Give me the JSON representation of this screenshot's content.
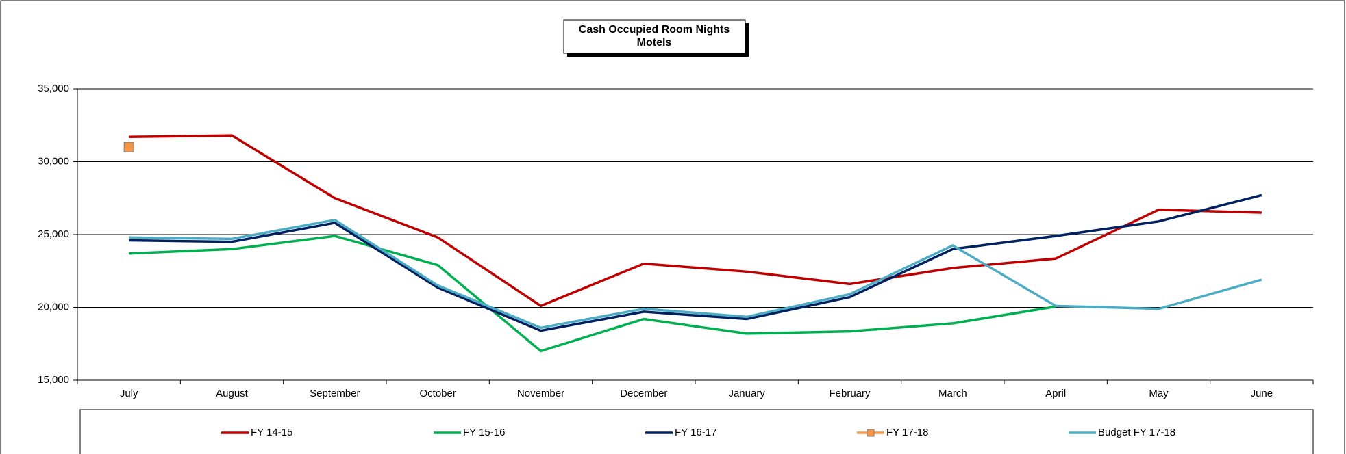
{
  "chart_data": {
    "type": "line",
    "title": "Cash Occupied Room Nights",
    "subtitle": "Motels",
    "categories": [
      "July",
      "August",
      "September",
      "October",
      "November",
      "December",
      "January",
      "February",
      "March",
      "April",
      "May",
      "June"
    ],
    "ylim": [
      15000,
      35000
    ],
    "yticks": [
      {
        "value": 15000,
        "label": "15,000"
      },
      {
        "value": 20000,
        "label": "20,000"
      },
      {
        "value": 25000,
        "label": "25,000"
      },
      {
        "value": 30000,
        "label": "30,000"
      },
      {
        "value": 35000,
        "label": "35,000"
      }
    ],
    "grid": true,
    "legend": "bottom",
    "series": [
      {
        "name": "FY 14-15",
        "color": "#c00000",
        "values": [
          31700,
          31800,
          27500,
          24800,
          20100,
          23000,
          22450,
          21600,
          22700,
          23350,
          26700,
          26500
        ]
      },
      {
        "name": "FY 15-16",
        "color": "#00b050",
        "values": [
          23700,
          24000,
          24900,
          22900,
          17000,
          19200,
          18200,
          18350,
          18900,
          20050,
          null,
          null
        ]
      },
      {
        "name": "FY 16-17",
        "color": "#002060",
        "values": [
          24600,
          24500,
          25800,
          21350,
          18400,
          19700,
          19200,
          20700,
          24000,
          24900,
          25900,
          27700
        ]
      },
      {
        "name": "FY 17-18",
        "color": "#f79646",
        "marker": "square",
        "values": [
          31000,
          null,
          null,
          null,
          null,
          null,
          null,
          null,
          null,
          null,
          null,
          null
        ]
      },
      {
        "name": "Budget FY 17-18",
        "color": "#4bacc6",
        "values": [
          24800,
          24700,
          26000,
          21500,
          18600,
          19900,
          19350,
          20900,
          24250,
          20100,
          19900,
          21900
        ]
      }
    ]
  }
}
